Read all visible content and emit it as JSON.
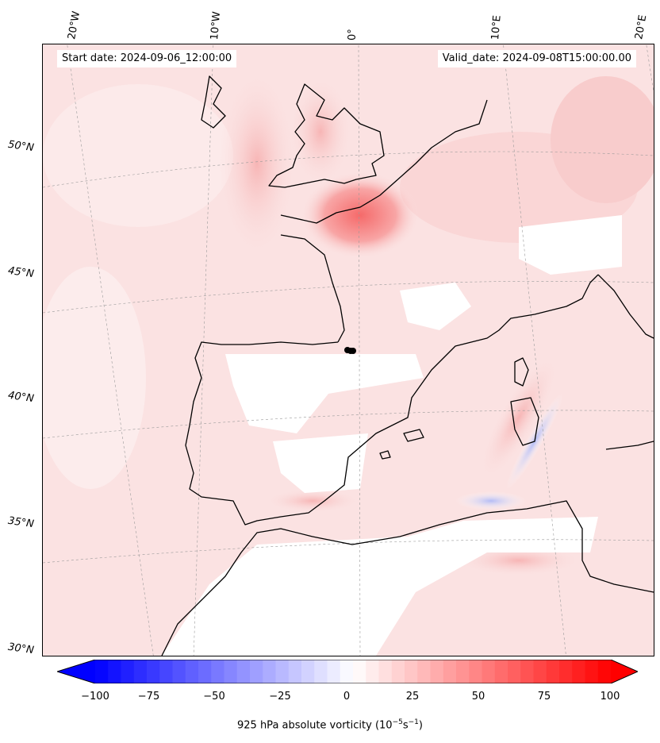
{
  "header": {
    "start_date": "Start date: 2024-09-06_12:00:00",
    "valid_date": "Valid_date: 2024-09-08T15:00:00.00"
  },
  "graticule": {
    "lon_labels": [
      "20°W",
      "10°W",
      "0°",
      "10°E",
      "20°E"
    ],
    "lat_labels": [
      "50°N",
      "45°N",
      "40°N",
      "35°N",
      "30°N"
    ]
  },
  "colorbar": {
    "ticks": [
      "−100",
      "−75",
      "−50",
      "−25",
      "0",
      "25",
      "50",
      "75",
      "100"
    ],
    "label": "925 hPa absolute vorticity (10",
    "label_exp1": "−5",
    "label_mid": "s",
    "label_exp2": "−1",
    "label_end": ")",
    "min": -100,
    "max": 100,
    "step": 5,
    "extend": "both",
    "cmap": "bwr",
    "colors": {
      "negative": "#0000ff",
      "zero": "#ffffff",
      "positive": "#ff0000"
    }
  },
  "map": {
    "projection": "Lambert conformal",
    "region": "Western Europe / Iberia / Western Mediterranean",
    "gridlines": true,
    "coastline_color": "#000000",
    "marker": {
      "label": "",
      "color": "#000000"
    }
  }
}
